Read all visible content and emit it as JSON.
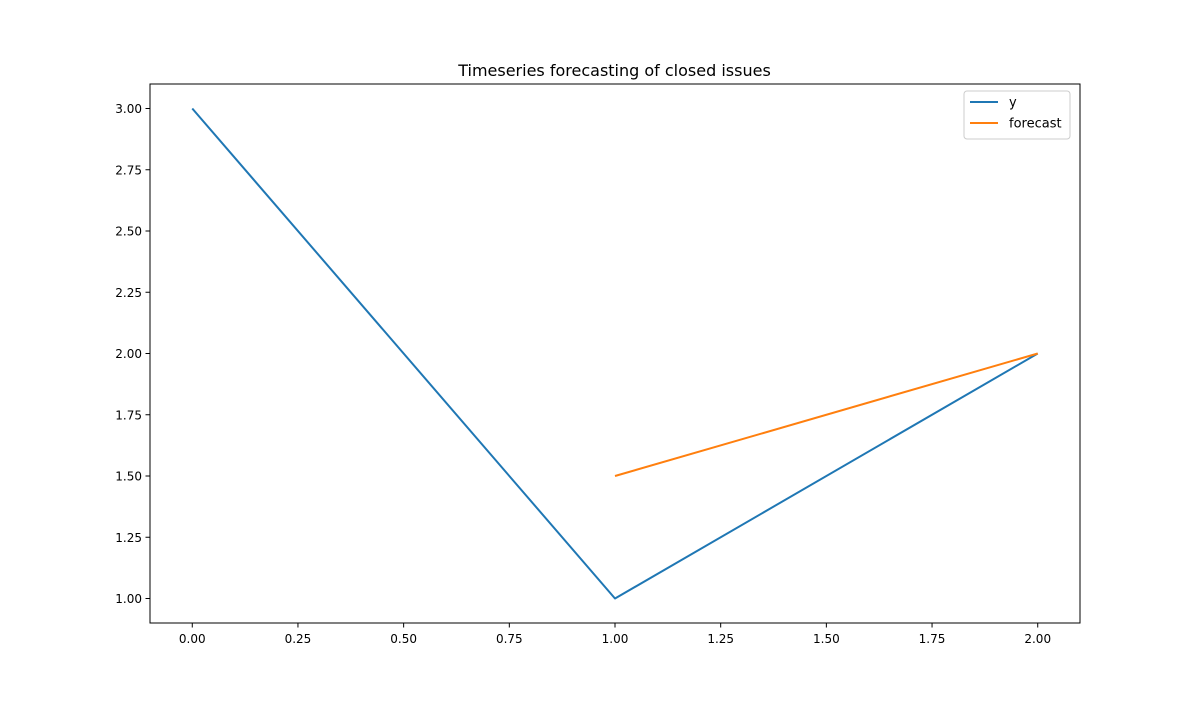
{
  "chart_data": {
    "type": "line",
    "title": "Timeseries forecasting of closed issues",
    "xlabel": "",
    "ylabel": "",
    "xlim": [
      -0.1,
      2.1
    ],
    "ylim": [
      0.9,
      3.1
    ],
    "x_ticks": [
      0.0,
      0.25,
      0.5,
      0.75,
      1.0,
      1.25,
      1.5,
      1.75,
      2.0
    ],
    "x_tick_labels": [
      "0.00",
      "0.25",
      "0.50",
      "0.75",
      "1.00",
      "1.25",
      "1.50",
      "1.75",
      "2.00"
    ],
    "y_ticks": [
      1.0,
      1.25,
      1.5,
      1.75,
      2.0,
      2.25,
      2.5,
      2.75,
      3.0
    ],
    "y_tick_labels": [
      "1.00",
      "1.25",
      "1.50",
      "1.75",
      "2.00",
      "2.25",
      "2.50",
      "2.75",
      "3.00"
    ],
    "grid": false,
    "legend_position": "top-right",
    "series": [
      {
        "name": "y",
        "color": "#1f77b4",
        "x": [
          0,
          1,
          2
        ],
        "y": [
          3.0,
          1.0,
          2.0
        ]
      },
      {
        "name": "forecast",
        "color": "#ff7f0e",
        "x": [
          1,
          2
        ],
        "y": [
          1.5,
          2.0
        ]
      }
    ]
  }
}
